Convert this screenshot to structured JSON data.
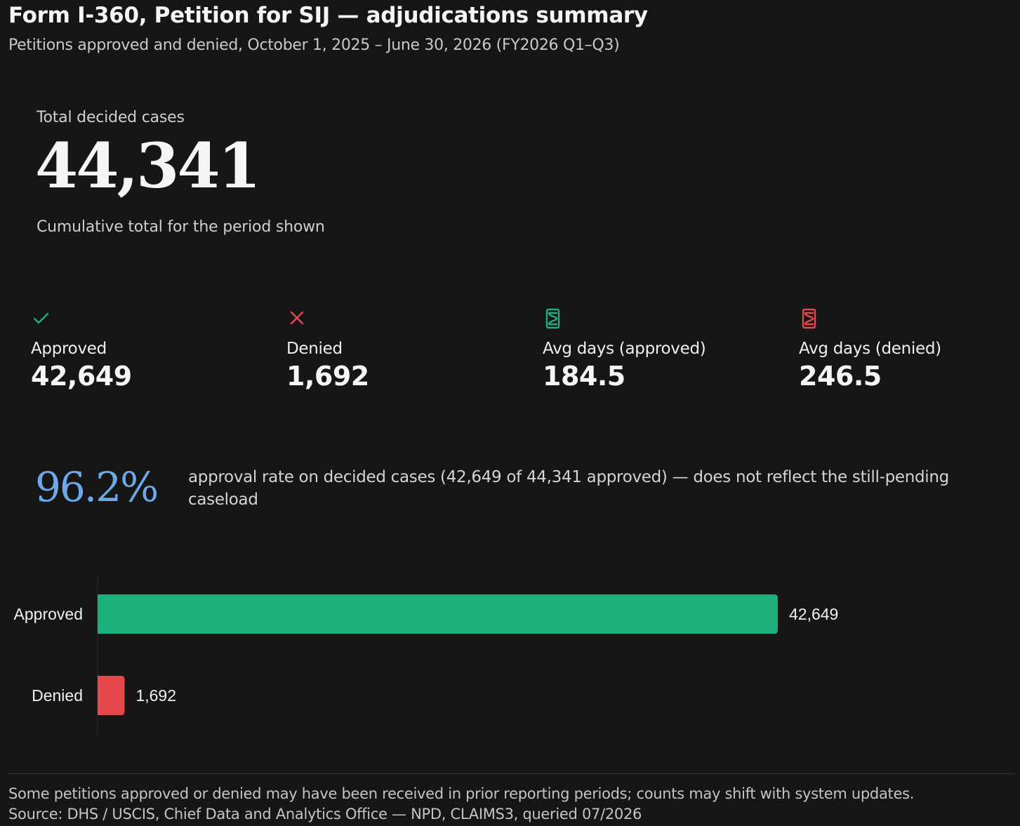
{
  "header": {
    "title": "Form I-360, Petition for SIJ — adjudications summary",
    "subtitle": "Petitions approved and denied, October 1, 2025 – June 30, 2026 (FY2026 Q1–Q3)"
  },
  "total": {
    "label": "Total decided cases",
    "value": "44,341",
    "note": "Cumulative total for the period shown"
  },
  "kpis": [
    {
      "icon": "check-icon",
      "label": "Approved",
      "value": "42,649",
      "color": "#1db07a"
    },
    {
      "icon": "x-icon",
      "label": "Denied",
      "value": "1,692",
      "color": "#e5484d"
    },
    {
      "icon": "hourglass-icon",
      "label": "Avg days (approved)",
      "value": "184.5",
      "color": "#1db07a"
    },
    {
      "icon": "hourglass-icon",
      "label": "Avg days (denied)",
      "value": "246.5",
      "color": "#e5484d"
    }
  ],
  "rate": {
    "value": "96.2%",
    "text": "approval rate on decided cases (42,649 of 44,341 approved) — does not reflect the still-pending caseload",
    "color": "#6ea8e8"
  },
  "chart_data": {
    "type": "bar",
    "orientation": "horizontal",
    "categories": [
      "Approved",
      "Denied"
    ],
    "values": [
      42649,
      1692
    ],
    "value_labels": [
      "42,649",
      "1,692"
    ],
    "colors": [
      "#1db07a",
      "#e5484d"
    ],
    "xlim": [
      0,
      42649
    ],
    "grid": false
  },
  "footer": {
    "note": "Some petitions approved or denied may have been received in prior reporting periods; counts may shift with system updates.",
    "source": "Source: DHS / USCIS, Chief Data and Analytics Office — NPD, CLAIMS3, queried 07/2026"
  }
}
